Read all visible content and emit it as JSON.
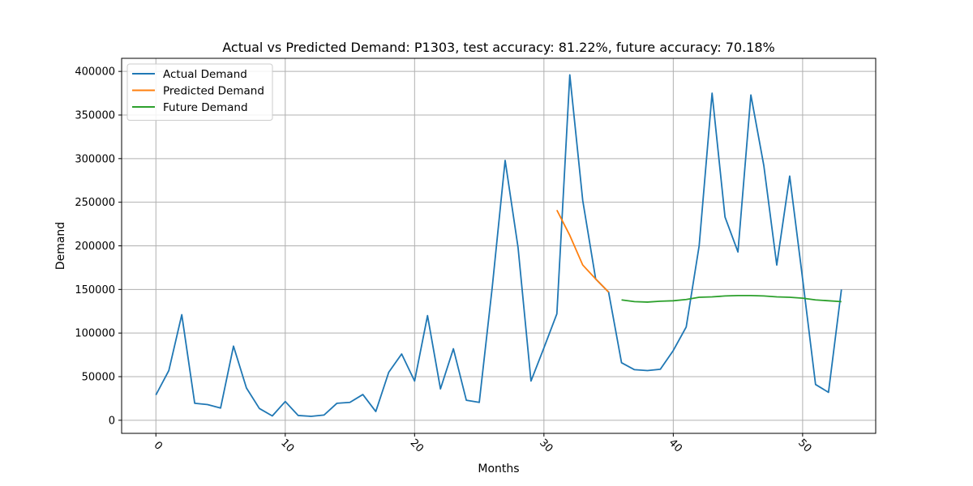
{
  "chart_data": {
    "type": "line",
    "title": "Actual vs Predicted Demand: P1303, test accuracy: 81.22%, future accuracy: 70.18%",
    "xlabel": "Months",
    "ylabel": "Demand",
    "xlim": [
      -2.65,
      55.65
    ],
    "ylim": [
      -15000,
      415000
    ],
    "xticks": [
      0,
      10,
      20,
      30,
      40,
      50
    ],
    "yticks": [
      0,
      50000,
      100000,
      150000,
      200000,
      250000,
      300000,
      350000,
      400000
    ],
    "xtick_rotation": 45,
    "grid": true,
    "legend_position": "upper-left",
    "series": [
      {
        "name": "Actual Demand",
        "color": "#1f77b4",
        "x": [
          0,
          1,
          2,
          3,
          4,
          5,
          6,
          7,
          8,
          9,
          10,
          11,
          12,
          13,
          14,
          15,
          16,
          17,
          18,
          19,
          20,
          21,
          22,
          23,
          24,
          25,
          26,
          27,
          28,
          29,
          30,
          31,
          32,
          33,
          34,
          35,
          36,
          37,
          38,
          39,
          40,
          41,
          42,
          43,
          44,
          45,
          46,
          47,
          48,
          49,
          50,
          51,
          52,
          53
        ],
        "y": [
          29000,
          57000,
          121000,
          19500,
          18000,
          14000,
          85000,
          37000,
          13500,
          5000,
          21500,
          5500,
          4500,
          6000,
          19500,
          20500,
          29500,
          10000,
          55000,
          76000,
          45000,
          120000,
          36000,
          82000,
          23000,
          20500,
          152000,
          298000,
          198000,
          45000,
          83000,
          122000,
          396000,
          252000,
          162000,
          147000,
          66000,
          58000,
          57000,
          58500,
          80000,
          107000,
          200000,
          375000,
          233000,
          193000,
          373000,
          292000,
          178000,
          280000,
          162000,
          41000,
          32000,
          150000
        ]
      },
      {
        "name": "Predicted Demand",
        "color": "#ff7f0e",
        "x": [
          31,
          32,
          33,
          34,
          35
        ],
        "y": [
          241000,
          212000,
          178000,
          162000,
          147000
        ]
      },
      {
        "name": "Future Demand",
        "color": "#2ca02c",
        "x": [
          36,
          37,
          38,
          39,
          40,
          41,
          42,
          43,
          44,
          45,
          46,
          47,
          48,
          49,
          50,
          51,
          52,
          53
        ],
        "y": [
          138000,
          136000,
          135500,
          136500,
          137000,
          138500,
          141000,
          141500,
          142500,
          143000,
          143000,
          142500,
          141500,
          141000,
          140000,
          138000,
          137000,
          136000
        ]
      }
    ]
  }
}
